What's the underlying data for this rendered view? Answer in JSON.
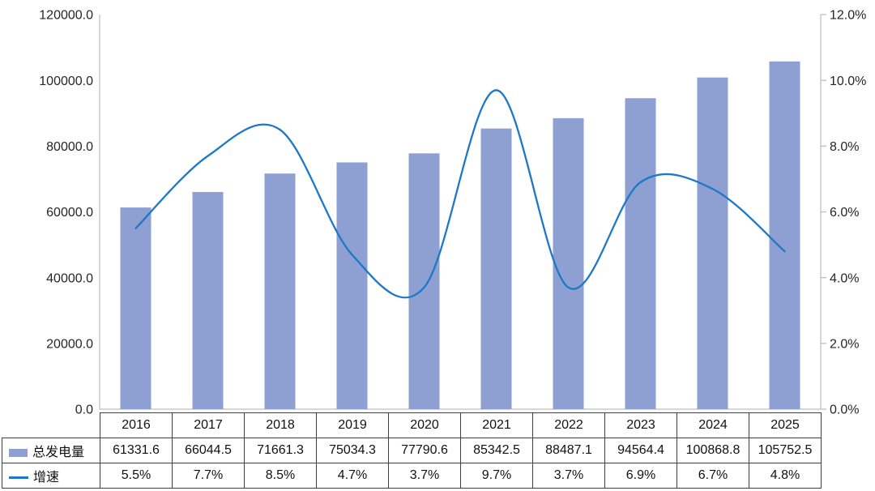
{
  "chart_data": {
    "type": "combo",
    "title": "",
    "categories": [
      "2016",
      "2017",
      "2018",
      "2019",
      "2020",
      "2021",
      "2022",
      "2023",
      "2024",
      "2025"
    ],
    "series": [
      {
        "name": "总发电量",
        "type": "bar",
        "axis": "left",
        "values": [
          61331.6,
          66044.5,
          71661.3,
          75034.3,
          77790.6,
          85342.5,
          88487.1,
          94564.4,
          100868.8,
          105752.5
        ]
      },
      {
        "name": "增速",
        "type": "line",
        "axis": "right",
        "smooth": true,
        "values": [
          5.5,
          7.7,
          8.5,
          4.7,
          3.7,
          9.7,
          3.7,
          6.9,
          6.7,
          4.8
        ]
      }
    ],
    "left_axis": {
      "min": 0,
      "max": 120000,
      "step": 20000,
      "labels": [
        "0.0",
        "20000.0",
        "40000.0",
        "60000.0",
        "80000.0",
        "100000.0",
        "120000.0"
      ]
    },
    "right_axis": {
      "min": 0,
      "max": 12,
      "step": 2,
      "labels": [
        "0.0%",
        "2.0%",
        "4.0%",
        "6.0%",
        "8.0%",
        "10.0%",
        "12.0%"
      ]
    },
    "grid": false,
    "legend_position": "table-left-column"
  },
  "table": {
    "year_row": [
      "2016",
      "2017",
      "2018",
      "2019",
      "2020",
      "2021",
      "2022",
      "2023",
      "2024",
      "2025"
    ],
    "rows": [
      {
        "label": "总发电量",
        "swatch": "bar",
        "values": [
          "61331.6",
          "66044.5",
          "71661.3",
          "75034.3",
          "77790.6",
          "85342.5",
          "88487.1",
          "94564.4",
          "100868.8",
          "105752.5"
        ]
      },
      {
        "label": "增速",
        "swatch": "line",
        "values": [
          "5.5%",
          "7.7%",
          "8.5%",
          "4.7%",
          "3.7%",
          "9.7%",
          "3.7%",
          "6.9%",
          "6.7%",
          "4.8%"
        ]
      }
    ]
  },
  "colors": {
    "bar_fill": "#8E9FD2",
    "line_stroke": "#1E78C8",
    "axis_line": "#BFBFBF",
    "axis_text": "#262626",
    "table_border": "#404040",
    "table_text": "#111111",
    "background": "#FFFFFF"
  }
}
